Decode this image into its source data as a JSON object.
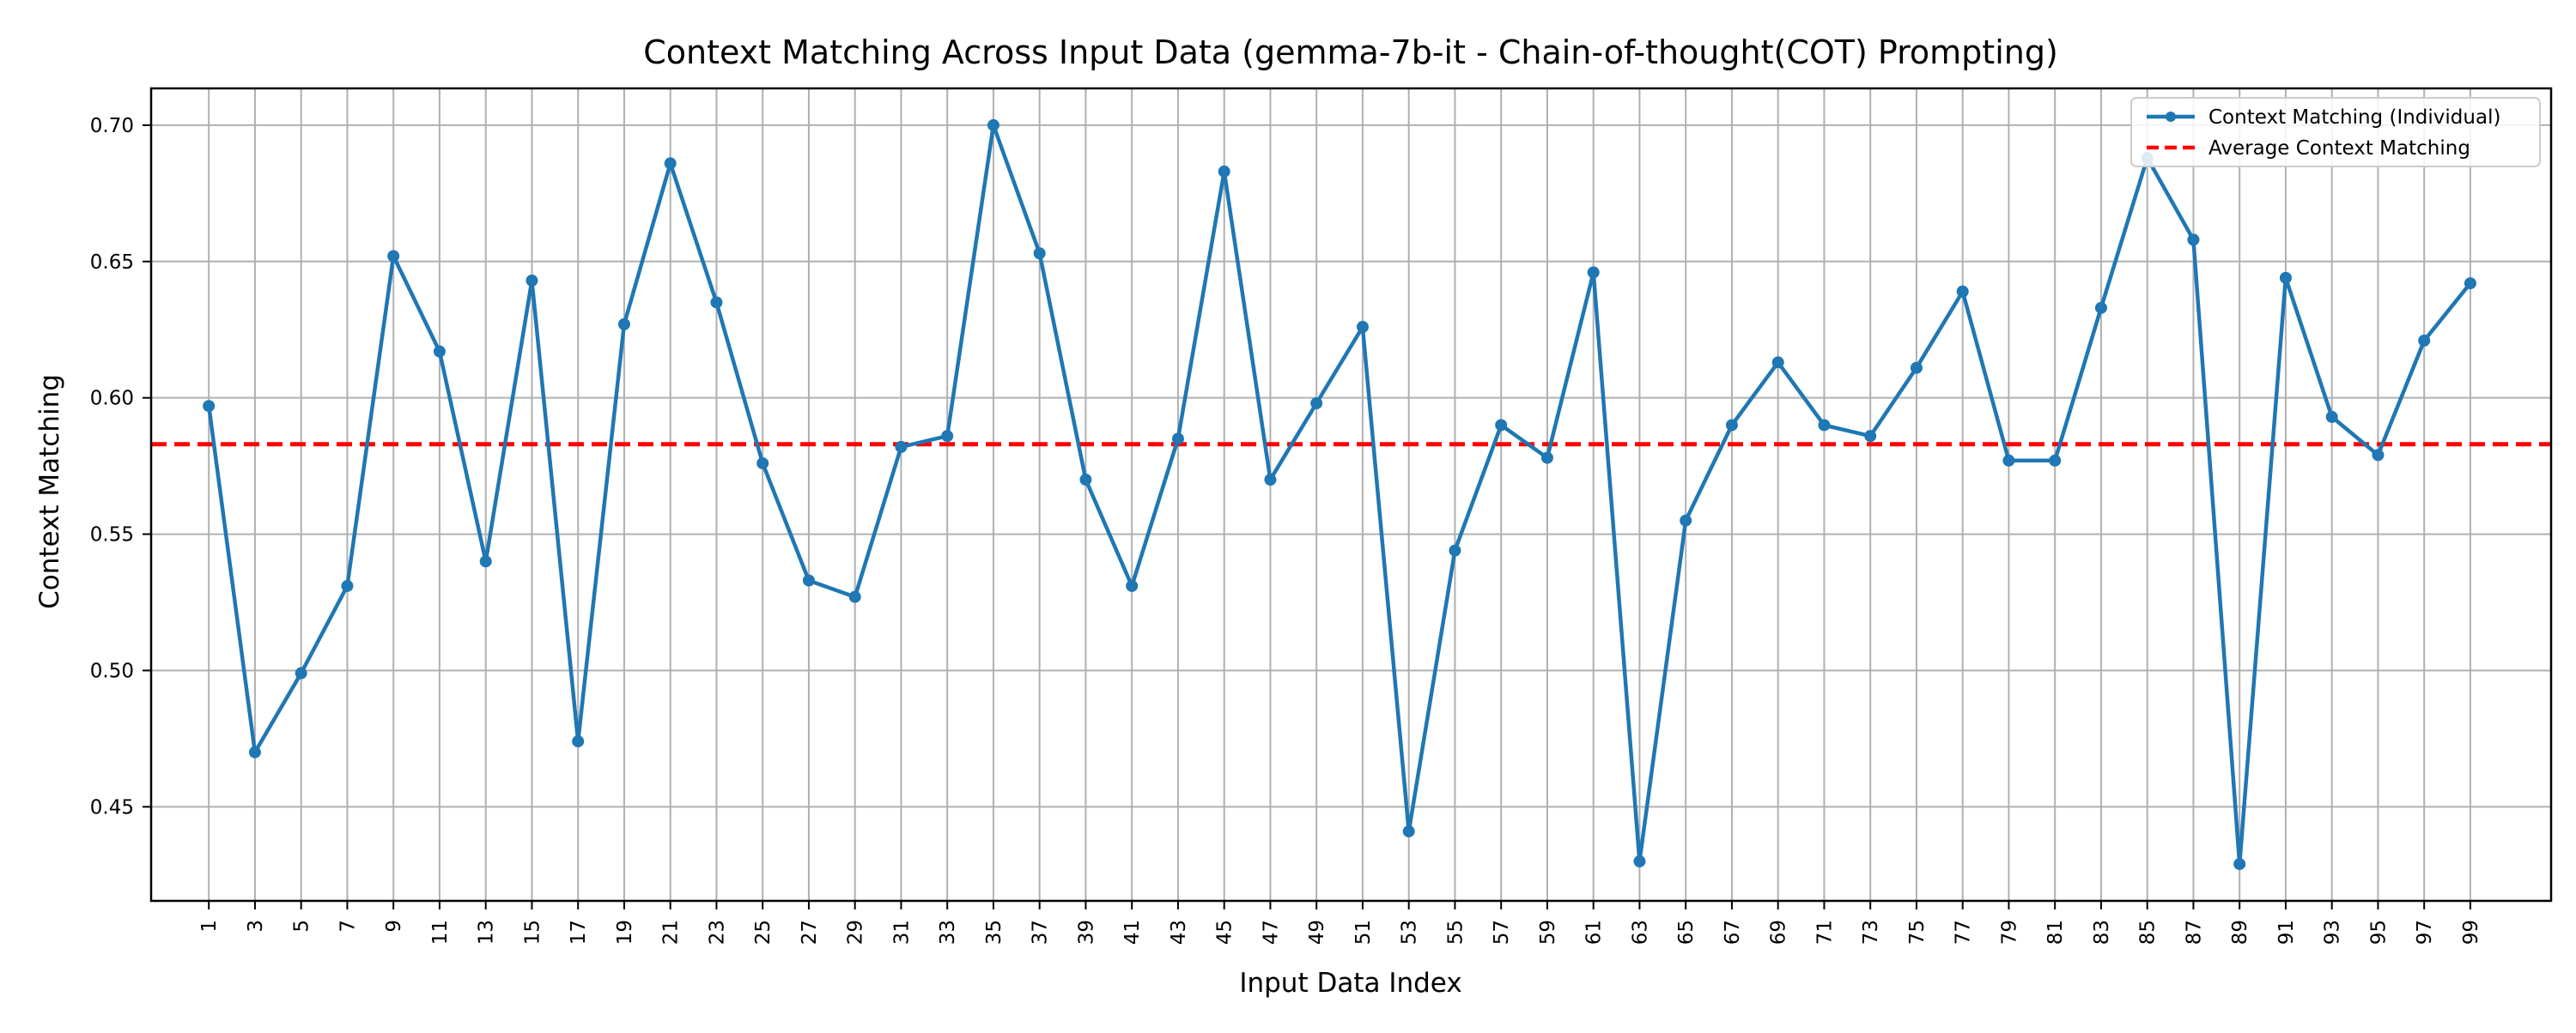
{
  "chart_data": {
    "type": "line",
    "title": "Context Matching Across Input Data (gemma-7b-it - Chain-of-thought(COT) Prompting)",
    "xlabel": "Input Data Index",
    "ylabel": "Context Matching",
    "xlim": [
      -1.5,
      102.5
    ],
    "ylim": [
      0.4155,
      0.7135
    ],
    "x_ticks": [
      1,
      3,
      5,
      7,
      9,
      11,
      13,
      15,
      17,
      19,
      21,
      23,
      25,
      27,
      29,
      31,
      33,
      35,
      37,
      39,
      41,
      43,
      45,
      47,
      49,
      51,
      53,
      55,
      57,
      59,
      61,
      63,
      65,
      67,
      69,
      71,
      73,
      75,
      77,
      79,
      81,
      83,
      85,
      87,
      89,
      91,
      93,
      95,
      97,
      99
    ],
    "y_ticks": [
      0.45,
      0.5,
      0.55,
      0.6,
      0.65,
      0.7
    ],
    "y_tick_labels": [
      "0.45",
      "0.50",
      "0.55",
      "0.60",
      "0.65",
      "0.70"
    ],
    "grid": true,
    "legend_position": "top-right",
    "series": [
      {
        "name": "Context Matching (Individual)",
        "color": "#1f77b4",
        "style": "solid-line-with-markers",
        "x": [
          1,
          3,
          5,
          7,
          9,
          11,
          13,
          15,
          17,
          19,
          21,
          23,
          25,
          27,
          29,
          31,
          33,
          35,
          37,
          39,
          41,
          43,
          45,
          47,
          49,
          51,
          53,
          55,
          57,
          59,
          61,
          63,
          65,
          67,
          69,
          71,
          73,
          75,
          77,
          79,
          81,
          83,
          85,
          87,
          89,
          91,
          93,
          95,
          97,
          99
        ],
        "y": [
          0.597,
          0.47,
          0.499,
          0.531,
          0.652,
          0.617,
          0.54,
          0.643,
          0.474,
          0.627,
          0.686,
          0.635,
          0.576,
          0.533,
          0.527,
          0.582,
          0.586,
          0.7,
          0.653,
          0.57,
          0.531,
          0.585,
          0.683,
          0.57,
          0.598,
          0.626,
          0.441,
          0.544,
          0.59,
          0.578,
          0.646,
          0.43,
          0.555,
          0.59,
          0.613,
          0.59,
          0.586,
          0.611,
          0.639,
          0.577,
          0.577,
          0.633,
          0.688,
          0.658,
          0.429,
          0.644,
          0.593,
          0.579,
          0.621,
          0.642
        ]
      },
      {
        "name": "Average Context Matching",
        "color": "#ff0000",
        "style": "dashed-line",
        "value": 0.583
      }
    ]
  }
}
